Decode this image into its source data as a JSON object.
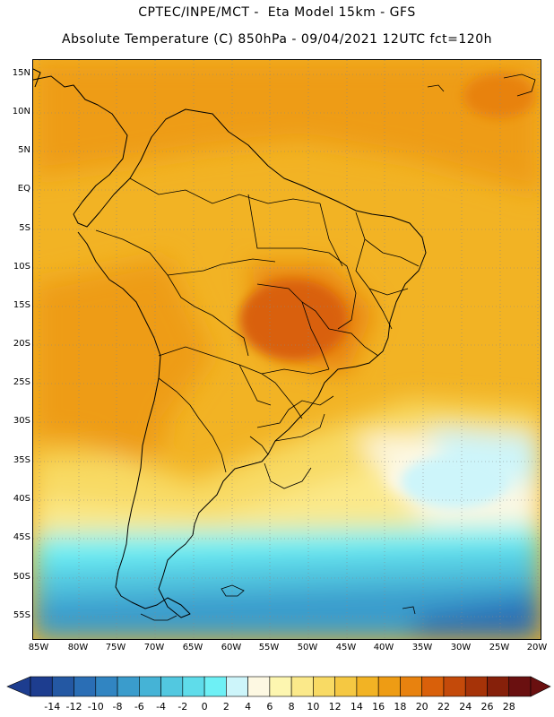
{
  "header": {
    "line1": "CPTEC/INPE/MCT -  Eta Model 15km - GFS",
    "line2": "Absolute Temperature (C) 850hPa - 09/04/2021 12UTC fct=120h"
  },
  "map": {
    "lat_ticks": [
      "15N",
      "10N",
      "5N",
      "EQ",
      "5S",
      "10S",
      "15S",
      "20S",
      "25S",
      "30S",
      "35S",
      "40S",
      "45S",
      "50S",
      "55S"
    ],
    "lon_ticks": [
      "85W",
      "80W",
      "75W",
      "70W",
      "65W",
      "60W",
      "55W",
      "50W",
      "45W",
      "40W",
      "35W",
      "30W",
      "25W",
      "20W"
    ],
    "grid": "dotted"
  },
  "colorbar": {
    "labels": [
      "-14",
      "-12",
      "-10",
      "-8",
      "-6",
      "-4",
      "-2",
      "0",
      "2",
      "4",
      "6",
      "8",
      "10",
      "12",
      "14",
      "16",
      "18",
      "20",
      "22",
      "24",
      "26",
      "28"
    ],
    "colors": [
      "#1d3d8f",
      "#2458a3",
      "#2a6eb5",
      "#3185c2",
      "#3a9ccc",
      "#45b3d6",
      "#52c8e0",
      "#5fdcea",
      "#6ef0f5",
      "#cdf5fa",
      "#fdf8e2",
      "#fdf6b0",
      "#fbe98a",
      "#f8da64",
      "#f5c842",
      "#f2b324",
      "#ee9c14",
      "#e8820f",
      "#d9600a",
      "#c44a0a",
      "#a63308",
      "#86200a",
      "#6a1010"
    ]
  }
}
